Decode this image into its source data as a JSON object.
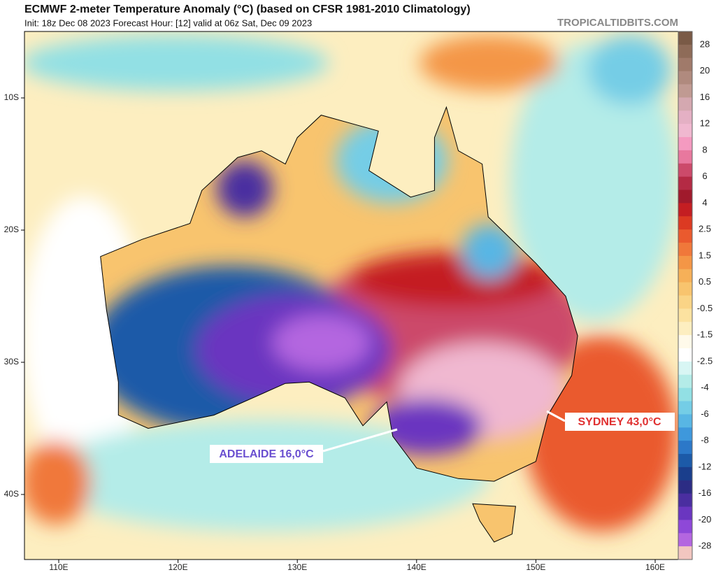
{
  "header": {
    "title": "ECMWF 2-meter Temperature Anomaly (°C) (based on CFSR 1981-2010 Climatology)",
    "subtitle": "Init: 18z Dec 08 2023   Forecast Hour: [12]   valid at 06z Sat, Dec 09 2023",
    "brand": "TROPICALTIDBITS.COM"
  },
  "map": {
    "lat_labels": [
      "10S",
      "20S",
      "30S",
      "40S"
    ],
    "lon_labels": [
      "110E",
      "120E",
      "130E",
      "140E",
      "150E",
      "160E"
    ],
    "annotations": [
      "ADELAIDE 16,0°C",
      "SYDNEY 43,0°C"
    ]
  },
  "colorbar": {
    "labels": [
      "28",
      "20",
      "16",
      "12",
      "8",
      "6",
      "4",
      "2.5",
      "1.5",
      "0.5",
      "-0.5",
      "-1.5",
      "-2.5",
      "-4",
      "-6",
      "-8",
      "-12",
      "-16",
      "-20",
      "-28"
    ],
    "colors": [
      "#7a5a46",
      "#8e6b58",
      "#a07a6a",
      "#b08a7e",
      "#c09a92",
      "#d4a8b0",
      "#e4b0c4",
      "#f0b8d0",
      "#f49ac0",
      "#e8789e",
      "#cc4a6a",
      "#b42a44",
      "#a01a2c",
      "#c41e22",
      "#dc3a22",
      "#ea5a2e",
      "#f0783a",
      "#f49646",
      "#f6b058",
      "#f8c46e",
      "#fad486",
      "#fce2a0",
      "#fdeec0",
      "#fffaea",
      "#ffffff",
      "#d8f6f4",
      "#b4ece8",
      "#92e0e4",
      "#74cde6",
      "#58b6e4",
      "#3e98dc",
      "#2c78c8",
      "#1c5aa8",
      "#1a3e8c",
      "#2c2c84",
      "#4a2ea0",
      "#6a36c0",
      "#8e48d8",
      "#b466e0",
      "#f2c6c0"
    ]
  }
}
